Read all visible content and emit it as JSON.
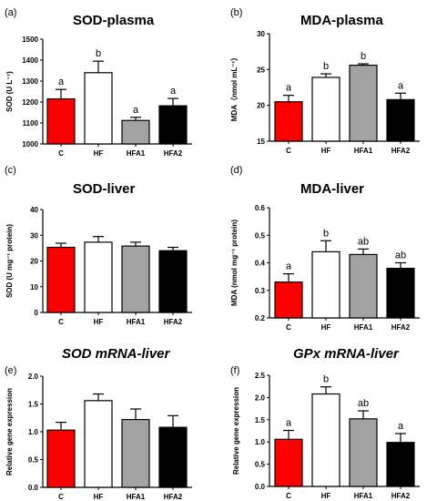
{
  "figure": {
    "bar_colors": {
      "C": "#ff0000",
      "HF": "#ffffff",
      "HFA1": "#a3a3a3",
      "HFA2": "#000000"
    }
  },
  "chart_data": [
    {
      "panel": "(a)",
      "type": "bar",
      "title": "SOD-plasma",
      "title_italic": false,
      "ylabel": "SOD (U L⁻¹)",
      "categories": [
        "C",
        "HF",
        "HFA1",
        "HFA2"
      ],
      "values": [
        1215,
        1340,
        1112,
        1182
      ],
      "errors": [
        45,
        55,
        15,
        35
      ],
      "sig_labels": [
        "a",
        "b",
        "a",
        "a"
      ],
      "ylim": [
        1000,
        1500
      ],
      "yticks": [
        "1000",
        "1100",
        "1200",
        "1300",
        "1400",
        "1500"
      ]
    },
    {
      "panel": "(b)",
      "type": "bar",
      "title": "MDA-plasma",
      "title_italic": false,
      "ylabel": "MDA（nmol mL⁻¹）",
      "categories": [
        "C",
        "HF",
        "HFA1",
        "HFA2"
      ],
      "values": [
        20.5,
        23.9,
        25.6,
        20.8
      ],
      "errors": [
        0.9,
        0.5,
        0.2,
        0.9
      ],
      "sig_labels": [
        "a",
        "b",
        "b",
        "a"
      ],
      "ylim": [
        15,
        30
      ],
      "yticks": [
        "15",
        "20",
        "25",
        "30"
      ]
    },
    {
      "panel": "(c)",
      "type": "bar",
      "title": "SOD-liver",
      "title_italic": false,
      "ylabel": "SOD (U mg⁻¹ protein)",
      "categories": [
        "C",
        "HF",
        "HFA1",
        "HFA2"
      ],
      "values": [
        25.3,
        27.3,
        25.8,
        24.0
      ],
      "errors": [
        1.6,
        2.2,
        1.5,
        1.3
      ],
      "sig_labels": [
        "",
        "",
        "",
        ""
      ],
      "ylim": [
        0,
        40
      ],
      "yticks": [
        "0",
        "10",
        "20",
        "30",
        "40"
      ]
    },
    {
      "panel": "(d)",
      "type": "bar",
      "title": "MDA-liver",
      "title_italic": false,
      "ylabel": "MDA (nmol mg⁻¹ protein)",
      "categories": [
        "C",
        "HF",
        "HFA1",
        "HFA2"
      ],
      "values": [
        0.33,
        0.44,
        0.43,
        0.38
      ],
      "errors": [
        0.03,
        0.04,
        0.02,
        0.02
      ],
      "sig_labels": [
        "a",
        "b",
        "ab",
        "ab"
      ],
      "ylim": [
        0.2,
        0.6
      ],
      "yticks": [
        "0.2",
        "0.3",
        "0.4",
        "0.5",
        "0.6"
      ]
    },
    {
      "panel": "(e)",
      "type": "bar",
      "title": "SOD mRNA-liver",
      "title_italic": true,
      "ylabel": "Relative gene expression",
      "categories": [
        "C",
        "HF",
        "HFA1",
        "HFA2"
      ],
      "values": [
        1.03,
        1.56,
        1.22,
        1.08
      ],
      "errors": [
        0.14,
        0.12,
        0.19,
        0.21
      ],
      "sig_labels": [
        "",
        "",
        "",
        ""
      ],
      "ylim": [
        0,
        2.0
      ],
      "yticks": [
        "0.0",
        "0.5",
        "1.0",
        "1.5",
        "2.0"
      ]
    },
    {
      "panel": "(f)",
      "type": "bar",
      "title": "GPx mRNA-liver",
      "title_italic": true,
      "ylabel": "Relative gene expression",
      "categories": [
        "C",
        "HF",
        "HFA1",
        "HFA2"
      ],
      "values": [
        1.06,
        2.08,
        1.52,
        0.99
      ],
      "errors": [
        0.2,
        0.16,
        0.18,
        0.2
      ],
      "sig_labels": [
        "a",
        "b",
        "ab",
        "a"
      ],
      "ylim": [
        0,
        2.5
      ],
      "yticks": [
        "0.0",
        "0.5",
        "1.0",
        "1.5",
        "2.0",
        "2.5"
      ]
    }
  ]
}
